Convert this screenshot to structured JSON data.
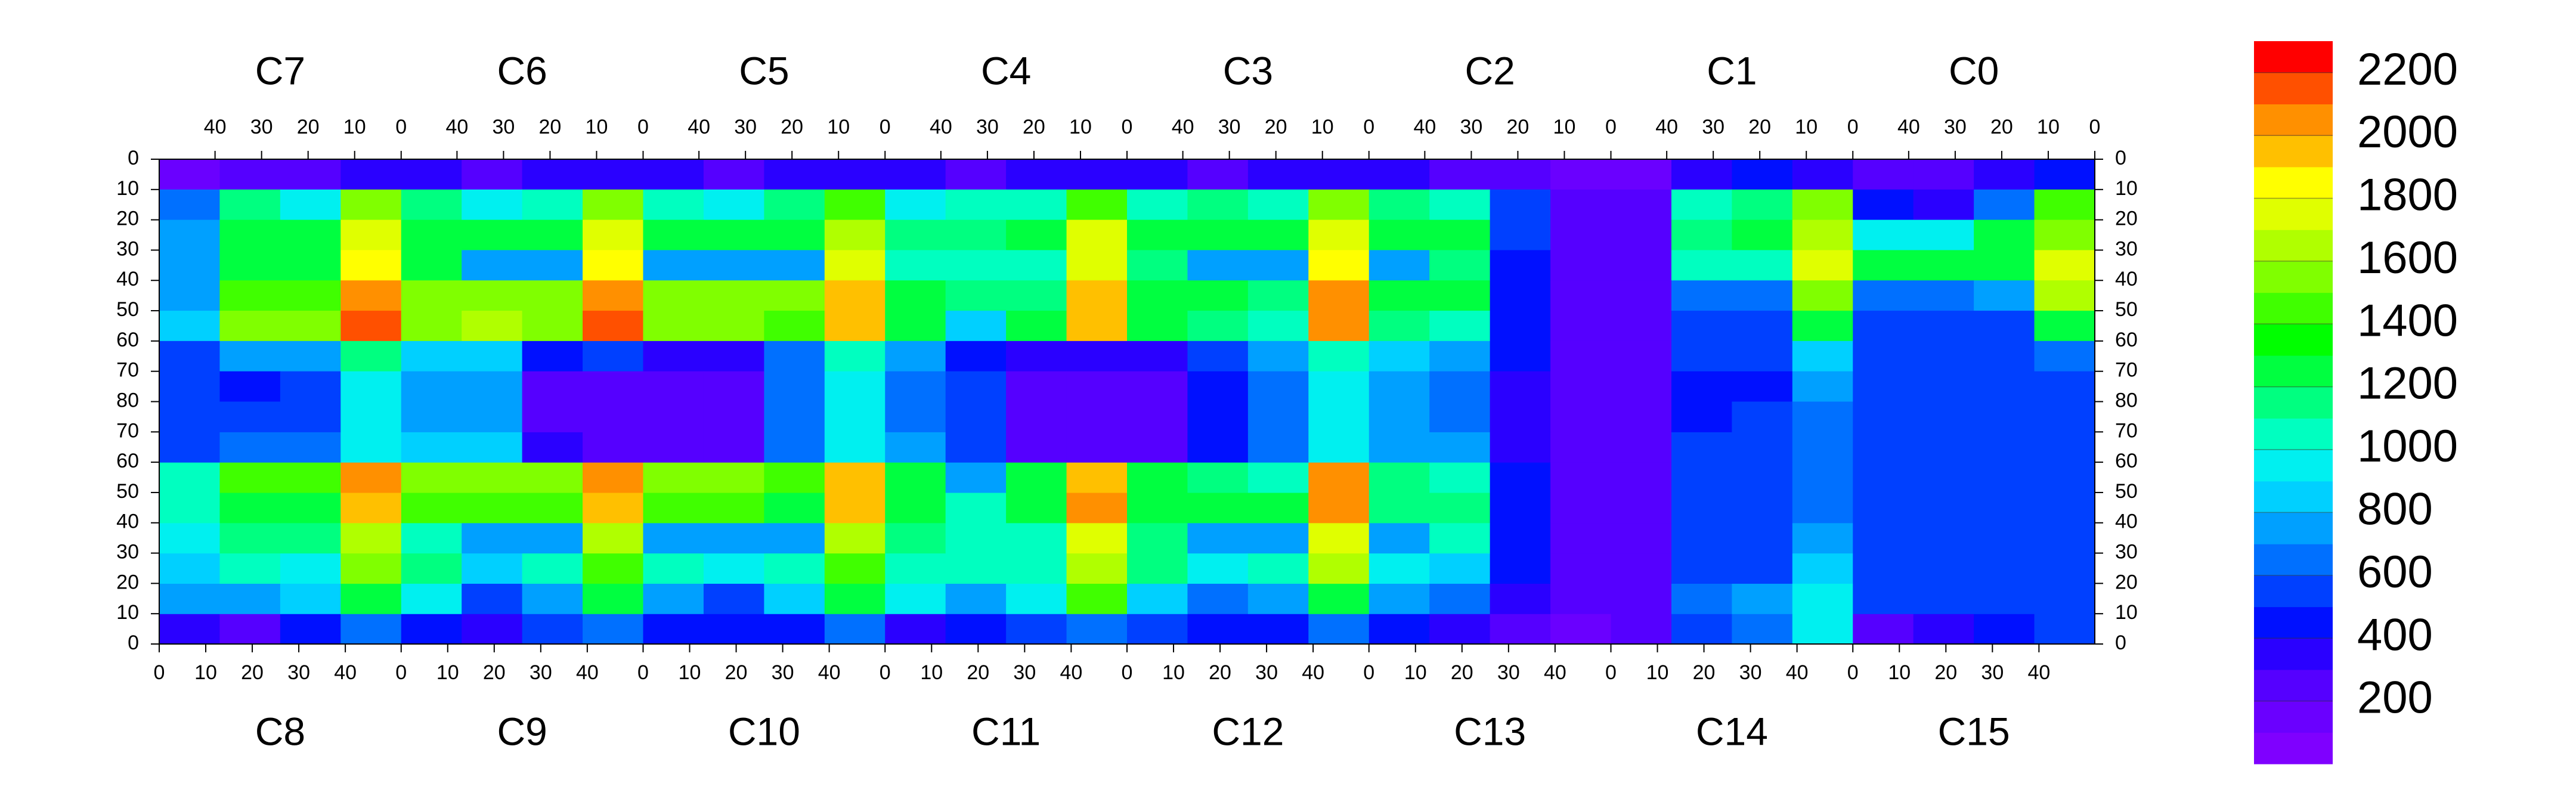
{
  "chart_data": {
    "type": "heatmap",
    "top_chips": [
      "C7",
      "C6",
      "C5",
      "C4",
      "C3",
      "C2",
      "C1",
      "C0"
    ],
    "bottom_chips": [
      "C8",
      "C9",
      "C10",
      "C11",
      "C12",
      "C13",
      "C14",
      "C15"
    ],
    "xlim": [
      0,
      52
    ],
    "xticks": [
      0,
      10,
      20,
      30,
      40
    ],
    "ylim": [
      0,
      80
    ],
    "yticks": [
      0,
      10,
      20,
      30,
      40,
      50,
      60,
      70,
      80
    ],
    "zlim": [
      0,
      2300
    ],
    "zticks": [
      200,
      400,
      600,
      800,
      1000,
      1200,
      1400,
      1600,
      1800,
      2000,
      2200
    ],
    "colorscale": [
      "#7f00ff",
      "#6a00ff",
      "#5500ff",
      "#2a00ff",
      "#0010ff",
      "#0040ff",
      "#0070ff",
      "#00a0ff",
      "#00d0ff",
      "#00f0f0",
      "#00ffc0",
      "#00ff80",
      "#00ff40",
      "#00ff00",
      "#40ff00",
      "#80ff00",
      "#b0ff00",
      "#e0ff00",
      "#ffff00",
      "#ffc000",
      "#ff9000",
      "#ff5000",
      "#ff0000"
    ],
    "z_top": [
      [
        150,
        200,
        250,
        300,
        300,
        250,
        300,
        350,
        300,
        250,
        300,
        350,
        300,
        250,
        300,
        350,
        300,
        250,
        300,
        350,
        300,
        250,
        200,
        150,
        150,
        300,
        400,
        350,
        200,
        250,
        300,
        400
      ],
      [
        600,
        1100,
        900,
        1500,
        1100,
        900,
        1000,
        1500,
        1000,
        900,
        1100,
        1400,
        900,
        1000,
        1000,
        1400,
        1000,
        1100,
        1000,
        1500,
        1100,
        1000,
        500,
        200,
        200,
        1000,
        1100,
        1500,
        400,
        300,
        600,
        1400
      ],
      [
        700,
        1300,
        1200,
        1700,
        1300,
        1200,
        1300,
        1700,
        1200,
        1200,
        1300,
        1600,
        1100,
        1100,
        1200,
        1700,
        1200,
        1300,
        1200,
        1700,
        1200,
        1200,
        500,
        200,
        200,
        1100,
        1200,
        1600,
        900,
        900,
        1200,
        1500
      ],
      [
        700,
        1300,
        1300,
        1800,
        1200,
        700,
        700,
        1800,
        700,
        700,
        700,
        1700,
        1000,
        1000,
        1000,
        1700,
        1100,
        700,
        700,
        1800,
        700,
        1100,
        400,
        200,
        200,
        1000,
        1000,
        1700,
        1200,
        1200,
        1300,
        1700
      ],
      [
        700,
        1400,
        1400,
        2000,
        1500,
        1500,
        1500,
        2000,
        1500,
        1500,
        1500,
        1900,
        1200,
        1100,
        1100,
        1900,
        1300,
        1300,
        1100,
        2000,
        1200,
        1200,
        400,
        200,
        200,
        600,
        600,
        1500,
        600,
        600,
        700,
        1600
      ],
      [
        800,
        1500,
        1500,
        2100,
        1500,
        1600,
        1500,
        2100,
        1500,
        1500,
        1400,
        1900,
        1200,
        800,
        1200,
        1900,
        1300,
        1100,
        1000,
        2000,
        1100,
        1000,
        400,
        200,
        200,
        500,
        500,
        1300,
        500,
        500,
        500,
        1200
      ],
      [
        500,
        700,
        700,
        1100,
        800,
        800,
        400,
        500,
        300,
        300,
        600,
        1000,
        700,
        400,
        300,
        300,
        300,
        500,
        700,
        1000,
        800,
        700,
        400,
        200,
        200,
        500,
        500,
        800,
        500,
        500,
        500,
        600
      ],
      [
        500,
        400,
        500,
        900,
        700,
        700,
        250,
        250,
        250,
        250,
        600,
        900,
        600,
        500,
        250,
        250,
        250,
        400,
        600,
        900,
        700,
        600,
        300,
        200,
        200,
        450,
        450,
        700,
        500,
        500,
        500,
        550
      ]
    ],
    "z_bottom": [
      [
        300,
        250,
        400,
        600,
        400,
        300,
        500,
        600,
        400,
        400,
        400,
        600,
        300,
        400,
        500,
        600,
        500,
        400,
        400,
        600,
        400,
        300,
        200,
        150,
        200,
        500,
        600,
        900,
        250,
        300,
        400,
        500
      ],
      [
        700,
        700,
        800,
        1300,
        900,
        500,
        700,
        1200,
        700,
        500,
        800,
        1200,
        900,
        700,
        900,
        1400,
        800,
        600,
        700,
        1300,
        700,
        600,
        300,
        200,
        200,
        600,
        700,
        900,
        500,
        500,
        500,
        500
      ],
      [
        800,
        1000,
        900,
        1500,
        1100,
        800,
        1000,
        1400,
        1000,
        900,
        1000,
        1400,
        1000,
        1000,
        1000,
        1600,
        1100,
        900,
        1000,
        1600,
        900,
        800,
        400,
        200,
        200,
        500,
        500,
        800,
        500,
        500,
        500,
        500
      ],
      [
        900,
        1100,
        1100,
        1600,
        1000,
        700,
        700,
        1600,
        700,
        700,
        700,
        1600,
        1100,
        1000,
        1000,
        1700,
        1100,
        700,
        700,
        1700,
        700,
        1000,
        400,
        200,
        200,
        500,
        500,
        700,
        500,
        500,
        500,
        500
      ],
      [
        1000,
        1300,
        1300,
        1900,
        1400,
        1400,
        1400,
        1900,
        1400,
        1400,
        1300,
        1900,
        1200,
        1000,
        1200,
        2000,
        1300,
        1300,
        1200,
        2000,
        1100,
        1100,
        400,
        200,
        200,
        500,
        500,
        600,
        500,
        500,
        500,
        500
      ],
      [
        1000,
        1400,
        1400,
        2000,
        1500,
        1500,
        1500,
        2000,
        1500,
        1500,
        1400,
        1900,
        1300,
        700,
        1200,
        1900,
        1300,
        1100,
        1000,
        2000,
        1100,
        1000,
        400,
        200,
        200,
        500,
        500,
        600,
        500,
        500,
        500,
        550
      ],
      [
        500,
        600,
        600,
        900,
        800,
        800,
        300,
        250,
        250,
        250,
        600,
        900,
        700,
        500,
        250,
        250,
        250,
        400,
        600,
        900,
        700,
        700,
        300,
        200,
        200,
        500,
        500,
        600,
        500,
        500,
        500,
        550
      ],
      [
        500,
        500,
        500,
        900,
        700,
        700,
        250,
        250,
        250,
        250,
        600,
        900,
        600,
        500,
        250,
        250,
        250,
        400,
        600,
        900,
        700,
        600,
        300,
        200,
        200,
        450,
        500,
        600,
        500,
        500,
        500,
        550
      ]
    ]
  }
}
